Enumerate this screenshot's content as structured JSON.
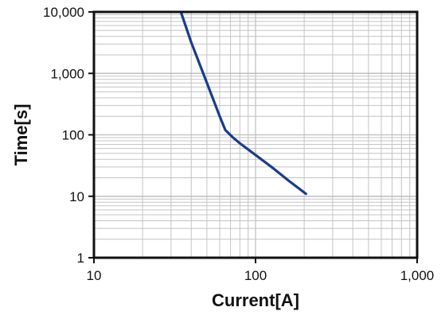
{
  "chart_data": {
    "type": "line",
    "title": "",
    "xlabel": "Current[A]",
    "ylabel": "Time[s]",
    "x_scale": "log",
    "y_scale": "log",
    "xlim": [
      10,
      1000
    ],
    "ylim": [
      1,
      10000
    ],
    "grid": true,
    "x_ticks": [
      {
        "value": 10,
        "label": "10"
      },
      {
        "value": 100,
        "label": "100"
      },
      {
        "value": 1000,
        "label": "1,000"
      }
    ],
    "y_ticks": [
      {
        "value": 1,
        "label": "1"
      },
      {
        "value": 10,
        "label": "10"
      },
      {
        "value": 100,
        "label": "100"
      },
      {
        "value": 1000,
        "label": "1,000"
      },
      {
        "value": 10000,
        "label": "10,000"
      }
    ],
    "series": [
      {
        "color": "#1a3c8c",
        "points": [
          {
            "x": 34.5,
            "y": 10000
          },
          {
            "x": 40,
            "y": 3200
          },
          {
            "x": 50,
            "y": 700
          },
          {
            "x": 60,
            "y": 200
          },
          {
            "x": 65,
            "y": 120
          },
          {
            "x": 72,
            "y": 92
          },
          {
            "x": 80,
            "y": 73
          },
          {
            "x": 100,
            "y": 47
          },
          {
            "x": 130,
            "y": 28
          },
          {
            "x": 160,
            "y": 18
          },
          {
            "x": 205,
            "y": 11
          }
        ]
      }
    ]
  }
}
